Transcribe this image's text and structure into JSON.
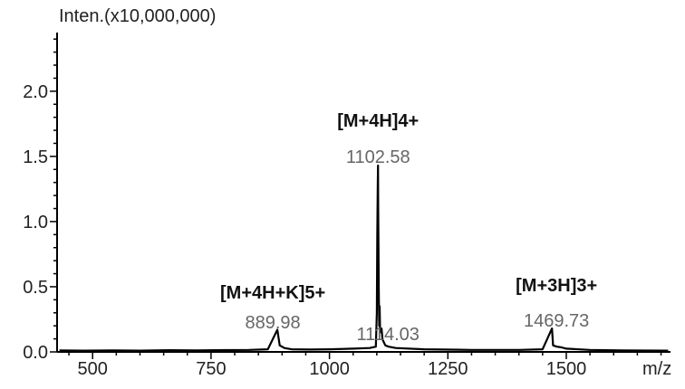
{
  "chart_data": {
    "type": "line",
    "ylabel": "Inten.(x10,000,000)",
    "xlabel": "m/z",
    "xlim": [
      425,
      1720
    ],
    "ylim": [
      0,
      2.45
    ],
    "xticks": [
      500,
      750,
      1000,
      1250,
      1500
    ],
    "xtick_labels": [
      "500",
      "750",
      "1000",
      "1250",
      "1500"
    ],
    "yticks": [
      0.0,
      0.5,
      1.0,
      1.5,
      2.0
    ],
    "ytick_labels": [
      "0.0",
      "0.5",
      "1.0",
      "1.5",
      "2.0"
    ],
    "grid": false,
    "colors": {
      "trace": "#000000",
      "ion_label": "#111111",
      "mz_label": "#666666",
      "axis": "#000000"
    },
    "series": [
      {
        "points": [
          [
            430,
            0.012
          ],
          [
            480,
            0.01
          ],
          [
            540,
            0.012
          ],
          [
            600,
            0.01
          ],
          [
            660,
            0.013
          ],
          [
            720,
            0.012
          ],
          [
            780,
            0.014
          ],
          [
            830,
            0.015
          ],
          [
            870,
            0.02
          ],
          [
            889.98,
            0.17
          ],
          [
            895,
            0.05
          ],
          [
            905,
            0.03
          ],
          [
            920,
            0.02
          ],
          [
            960,
            0.018
          ],
          [
            1000,
            0.02
          ],
          [
            1050,
            0.025
          ],
          [
            1085,
            0.03
          ],
          [
            1098,
            0.04
          ],
          [
            1100,
            0.3
          ],
          [
            1101,
            0.9
          ],
          [
            1102,
            1.27
          ],
          [
            1102.58,
            1.43
          ],
          [
            1103,
            1.1
          ],
          [
            1104,
            0.5
          ],
          [
            1105,
            0.2
          ],
          [
            1106,
            0.35
          ],
          [
            1107,
            0.15
          ],
          [
            1110,
            0.18
          ],
          [
            1112,
            0.1
          ],
          [
            1114.03,
            0.08
          ],
          [
            1118,
            0.05
          ],
          [
            1125,
            0.04
          ],
          [
            1140,
            0.03
          ],
          [
            1200,
            0.02
          ],
          [
            1300,
            0.015
          ],
          [
            1400,
            0.015
          ],
          [
            1450,
            0.02
          ],
          [
            1469.73,
            0.18
          ],
          [
            1472,
            0.05
          ],
          [
            1480,
            0.04
          ],
          [
            1490,
            0.035
          ],
          [
            1500,
            0.025
          ],
          [
            1550,
            0.015
          ],
          [
            1620,
            0.012
          ],
          [
            1715,
            0.01
          ]
        ]
      }
    ],
    "annotations": [
      {
        "ion": "[M+4H]4+",
        "mz": "1102.58",
        "x": 1102.58
      },
      {
        "ion": "[M+4H+K]5+",
        "mz": "889.98",
        "x": 889.98
      },
      {
        "ion": "",
        "mz": "1114.03",
        "x": 1114.03
      },
      {
        "ion": "[M+3H]3+",
        "mz": "1469.73",
        "x": 1469.73
      }
    ]
  }
}
